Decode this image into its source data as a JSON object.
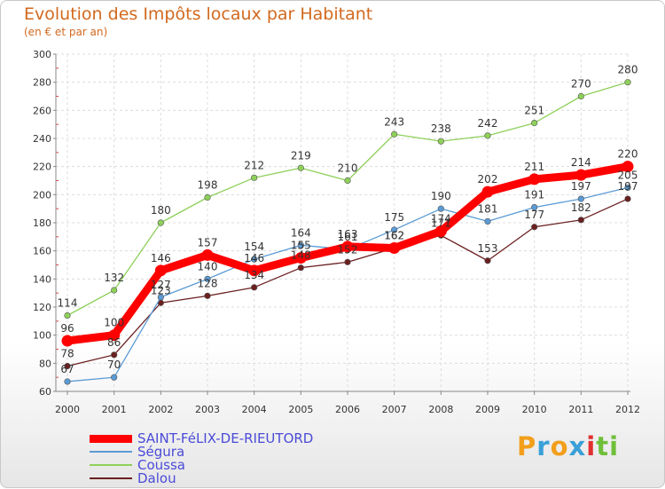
{
  "title": "Evolution des Impôts locaux par Habitant",
  "subtitle": "(en € et par an)",
  "logo": {
    "letters": [
      "P",
      "r",
      "o",
      "x",
      "i",
      "t",
      "i"
    ],
    "colors": [
      "#f29f1b",
      "#3aa0d8",
      "#f29f1b",
      "#3aa0d8",
      "#e03030",
      "#6fbf3a",
      "#6fbf3a"
    ]
  },
  "chart_data": {
    "type": "line",
    "title": "Evolution des Impôts locaux par Habitant",
    "subtitle": "(en € et par an)",
    "xlabel": "",
    "ylabel": "",
    "x": [
      "2000",
      "2001",
      "2002",
      "2003",
      "2004",
      "2005",
      "2006",
      "2007",
      "2008",
      "2009",
      "2010",
      "2011",
      "2012"
    ],
    "ylim": [
      60,
      300
    ],
    "yticks": [
      60,
      80,
      100,
      120,
      140,
      160,
      180,
      200,
      220,
      240,
      260,
      280,
      300
    ],
    "grid": true,
    "series": [
      {
        "name": "SAINT-FéLIX-DE-RIEUTORD",
        "color": "#ff0000",
        "values": [
          96,
          100,
          146,
          157,
          146,
          155,
          163,
          162,
          174,
          202,
          211,
          214,
          220
        ],
        "labels": [
          "96",
          "100",
          "146",
          "157",
          "146",
          "155",
          "163",
          "162",
          "174",
          "202",
          "211",
          "214",
          "220"
        ]
      },
      {
        "name": "Ségura",
        "color": "#5b9bd5",
        "values": [
          67,
          70,
          127,
          140,
          154,
          164,
          161,
          175,
          190,
          181,
          191,
          197,
          205
        ],
        "labels": [
          "67",
          "70",
          "127",
          "140",
          "154",
          "164",
          "161",
          "175",
          "190",
          "181",
          "191",
          "197",
          "205"
        ]
      },
      {
        "name": "Coussa",
        "color": "#8ed05a",
        "values": [
          114,
          132,
          180,
          198,
          212,
          219,
          210,
          243,
          238,
          242,
          251,
          270,
          280
        ],
        "labels": [
          "114",
          "132",
          "180",
          "198",
          "212",
          "219",
          "210",
          "243",
          "238",
          "242",
          "251",
          "270",
          "280"
        ]
      },
      {
        "name": "Dalou",
        "color": "#6b1f1f",
        "values": [
          78,
          86,
          123,
          128,
          134,
          148,
          152,
          162,
          171,
          153,
          177,
          182,
          197
        ],
        "labels": [
          "78",
          "86",
          "123",
          "128",
          "134",
          "148",
          "152",
          "162",
          "171",
          "153",
          "177",
          "182",
          "197"
        ]
      }
    ],
    "legend_position": "bottom-left"
  }
}
